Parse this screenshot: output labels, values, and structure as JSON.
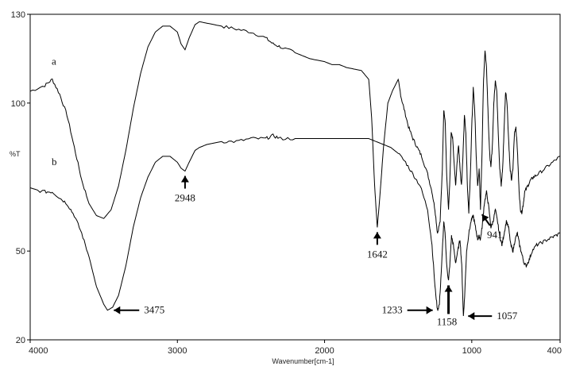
{
  "chart_data": {
    "type": "line",
    "title": "",
    "xlabel": "Wavenumber[cm-1]",
    "ylabel": "%T",
    "xlim": [
      4000,
      400
    ],
    "ylim": [
      20,
      130
    ],
    "x_reversed": true,
    "grid": false,
    "x_ticks": [
      "4000",
      "3000",
      "2000",
      "1000",
      "400"
    ],
    "x_tick_values": [
      4000,
      3000,
      2000,
      1000,
      400
    ],
    "y_ticks": [
      "130",
      "100",
      "50",
      "20"
    ],
    "y_tick_values": [
      130,
      100,
      50,
      20
    ],
    "line_color": "#000000",
    "series": [
      {
        "name": "a",
        "points": [
          [
            4000,
            104
          ],
          [
            3900,
            106
          ],
          [
            3850,
            108
          ],
          [
            3800,
            103
          ],
          [
            3750,
            96
          ],
          [
            3700,
            85
          ],
          [
            3650,
            74
          ],
          [
            3600,
            66
          ],
          [
            3550,
            62
          ],
          [
            3500,
            61
          ],
          [
            3450,
            64
          ],
          [
            3400,
            72
          ],
          [
            3350,
            84
          ],
          [
            3300,
            98
          ],
          [
            3250,
            110
          ],
          [
            3200,
            119
          ],
          [
            3150,
            124
          ],
          [
            3100,
            126
          ],
          [
            3050,
            126
          ],
          [
            3000,
            124
          ],
          [
            2975,
            120
          ],
          [
            2948,
            118
          ],
          [
            2920,
            122
          ],
          [
            2880,
            126.5
          ],
          [
            2850,
            127.5
          ],
          [
            2800,
            127
          ],
          [
            2700,
            126
          ],
          [
            2600,
            125
          ],
          [
            2500,
            124
          ],
          [
            2400,
            122
          ],
          [
            2350,
            120
          ],
          [
            2300,
            119
          ],
          [
            2200,
            117
          ],
          [
            2100,
            115
          ],
          [
            2000,
            114
          ],
          [
            1950,
            113
          ],
          [
            1900,
            113
          ],
          [
            1850,
            112
          ],
          [
            1800,
            111.5
          ],
          [
            1750,
            111
          ],
          [
            1700,
            108
          ],
          [
            1680,
            95
          ],
          [
            1660,
            72
          ],
          [
            1642,
            58
          ],
          [
            1625,
            68
          ],
          [
            1600,
            85
          ],
          [
            1570,
            100
          ],
          [
            1540,
            104
          ],
          [
            1500,
            108
          ],
          [
            1480,
            102
          ],
          [
            1460,
            98
          ],
          [
            1430,
            92
          ],
          [
            1400,
            88
          ],
          [
            1370,
            85
          ],
          [
            1340,
            82
          ],
          [
            1300,
            76
          ],
          [
            1270,
            70
          ],
          [
            1250,
            64
          ],
          [
            1233,
            56
          ],
          [
            1215,
            60
          ],
          [
            1200,
            78
          ],
          [
            1190,
            98
          ],
          [
            1180,
            93
          ],
          [
            1170,
            75
          ],
          [
            1158,
            64
          ],
          [
            1150,
            72
          ],
          [
            1140,
            90
          ],
          [
            1130,
            88
          ],
          [
            1110,
            72
          ],
          [
            1100,
            80
          ],
          [
            1090,
            86
          ],
          [
            1080,
            78
          ],
          [
            1070,
            72
          ],
          [
            1060,
            82
          ],
          [
            1050,
            96
          ],
          [
            1040,
            90
          ],
          [
            1030,
            72
          ],
          [
            1020,
            63
          ],
          [
            1010,
            75
          ],
          [
            1000,
            92
          ],
          [
            990,
            105
          ],
          [
            980,
            98
          ],
          [
            970,
            82
          ],
          [
            960,
            72
          ],
          [
            950,
            78
          ],
          [
            941,
            64
          ],
          [
            930,
            84
          ],
          [
            920,
            108
          ],
          [
            910,
            118
          ],
          [
            900,
            112
          ],
          [
            890,
            98
          ],
          [
            880,
            84
          ],
          [
            870,
            78
          ],
          [
            860,
            86
          ],
          [
            850,
            100
          ],
          [
            840,
            108
          ],
          [
            830,
            104
          ],
          [
            820,
            90
          ],
          [
            810,
            78
          ],
          [
            800,
            72
          ],
          [
            790,
            78
          ],
          [
            780,
            92
          ],
          [
            770,
            104
          ],
          [
            760,
            100
          ],
          [
            750,
            88
          ],
          [
            740,
            78
          ],
          [
            730,
            74
          ],
          [
            720,
            78
          ],
          [
            710,
            90
          ],
          [
            700,
            92
          ],
          [
            690,
            84
          ],
          [
            680,
            72
          ],
          [
            670,
            64
          ],
          [
            660,
            63
          ],
          [
            650,
            66
          ],
          [
            640,
            70
          ],
          [
            620,
            72
          ],
          [
            600,
            74
          ],
          [
            580,
            75
          ],
          [
            550,
            76
          ],
          [
            500,
            78
          ],
          [
            450,
            80
          ],
          [
            400,
            82
          ]
        ]
      },
      {
        "name": "b",
        "points": [
          [
            4000,
            71
          ],
          [
            3900,
            70
          ],
          [
            3850,
            70
          ],
          [
            3800,
            68
          ],
          [
            3750,
            66
          ],
          [
            3700,
            62
          ],
          [
            3650,
            56
          ],
          [
            3600,
            48
          ],
          [
            3550,
            38
          ],
          [
            3500,
            32
          ],
          [
            3475,
            30
          ],
          [
            3440,
            31
          ],
          [
            3400,
            35
          ],
          [
            3350,
            45
          ],
          [
            3300,
            58
          ],
          [
            3250,
            68
          ],
          [
            3200,
            75
          ],
          [
            3150,
            80
          ],
          [
            3100,
            82
          ],
          [
            3050,
            82
          ],
          [
            3000,
            80
          ],
          [
            2975,
            78
          ],
          [
            2948,
            77
          ],
          [
            2920,
            80
          ],
          [
            2880,
            84
          ],
          [
            2850,
            85
          ],
          [
            2800,
            86
          ],
          [
            2700,
            87
          ],
          [
            2600,
            87
          ],
          [
            2500,
            88
          ],
          [
            2400,
            88
          ],
          [
            2350,
            89
          ],
          [
            2300,
            88
          ],
          [
            2200,
            88
          ],
          [
            2100,
            88
          ],
          [
            2000,
            88
          ],
          [
            1950,
            88
          ],
          [
            1900,
            88
          ],
          [
            1850,
            88
          ],
          [
            1800,
            88
          ],
          [
            1750,
            88
          ],
          [
            1700,
            88
          ],
          [
            1650,
            87
          ],
          [
            1600,
            86
          ],
          [
            1550,
            85
          ],
          [
            1500,
            83
          ],
          [
            1450,
            80
          ],
          [
            1400,
            76
          ],
          [
            1350,
            72
          ],
          [
            1300,
            64
          ],
          [
            1270,
            52
          ],
          [
            1250,
            38
          ],
          [
            1233,
            30
          ],
          [
            1220,
            32
          ],
          [
            1205,
            45
          ],
          [
            1190,
            60
          ],
          [
            1180,
            55
          ],
          [
            1170,
            45
          ],
          [
            1158,
            40
          ],
          [
            1148,
            46
          ],
          [
            1138,
            55
          ],
          [
            1125,
            52
          ],
          [
            1110,
            46
          ],
          [
            1095,
            50
          ],
          [
            1080,
            54
          ],
          [
            1068,
            45
          ],
          [
            1057,
            28
          ],
          [
            1048,
            35
          ],
          [
            1035,
            50
          ],
          [
            1020,
            56
          ],
          [
            1005,
            60
          ],
          [
            990,
            62
          ],
          [
            975,
            58
          ],
          [
            960,
            54
          ],
          [
            950,
            55
          ],
          [
            941,
            54
          ],
          [
            930,
            58
          ],
          [
            915,
            66
          ],
          [
            900,
            70
          ],
          [
            885,
            65
          ],
          [
            870,
            58
          ],
          [
            855,
            60
          ],
          [
            840,
            64
          ],
          [
            825,
            60
          ],
          [
            810,
            55
          ],
          [
            795,
            52
          ],
          [
            780,
            56
          ],
          [
            765,
            60
          ],
          [
            750,
            58
          ],
          [
            735,
            52
          ],
          [
            720,
            50
          ],
          [
            705,
            54
          ],
          [
            690,
            56
          ],
          [
            675,
            52
          ],
          [
            660,
            49
          ],
          [
            645,
            46
          ],
          [
            630,
            45
          ],
          [
            610,
            47
          ],
          [
            590,
            50
          ],
          [
            560,
            52
          ],
          [
            520,
            53
          ],
          [
            480,
            54
          ],
          [
            440,
            55
          ],
          [
            400,
            56
          ]
        ]
      }
    ],
    "annotations": [
      {
        "label": "2948",
        "x": 2948,
        "series": "b"
      },
      {
        "label": "1642",
        "x": 1642,
        "series": "a"
      },
      {
        "label": "941",
        "x": 941,
        "series": "a"
      },
      {
        "label": "3475",
        "x": 3475,
        "series": "b"
      },
      {
        "label": "1233",
        "x": 1233,
        "series": "b"
      },
      {
        "label": "1158",
        "x": 1158,
        "series": "b"
      },
      {
        "label": "1057",
        "x": 1057,
        "series": "b"
      }
    ]
  }
}
